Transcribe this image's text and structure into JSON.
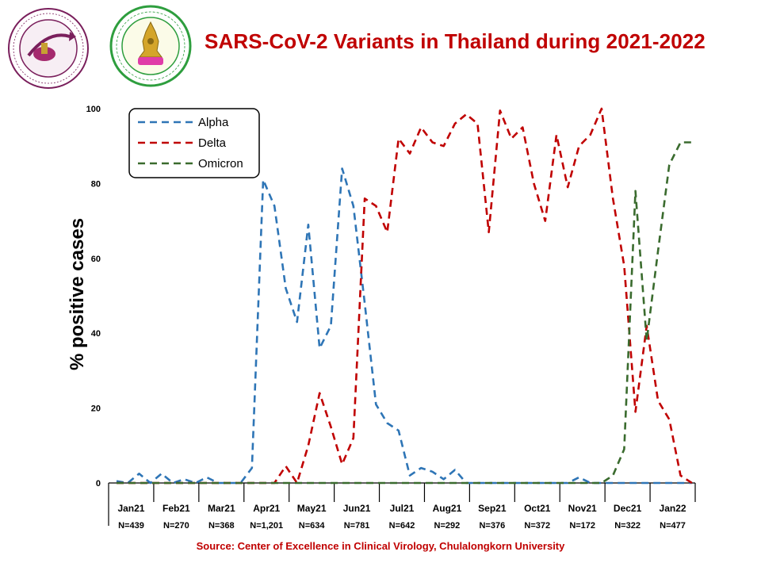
{
  "title": "SARS-CoV-2 Variants in Thailand during 2021-2022",
  "source": "Source: Center of Excellence in Clinical Virology, Chulalongkorn University",
  "logos": {
    "virology": {
      "icon": "center-of-excellence-virology-seal",
      "text": "Center of Excellence in Clinical Virology",
      "color": "#7a1f5c"
    },
    "medicine": {
      "icon": "faculty-of-medicine-chulalongkorn-seal",
      "text": "Faculty of Medicine Chulalongkorn University",
      "color": "#2e9e3e"
    }
  },
  "chart_data": {
    "type": "line",
    "title": "SARS-CoV-2 Variants in Thailand during 2021-2022",
    "ylabel": "% positive cases",
    "xlabel": "",
    "ylim": [
      0,
      100
    ],
    "yticks": [
      0,
      20,
      40,
      60,
      80,
      100
    ],
    "grid": false,
    "legend": "top-left",
    "categories": [
      "Jan21",
      "Feb21",
      "Mar21",
      "Apr21",
      "May21",
      "Jun21",
      "Jul21",
      "Aug21",
      "Sep21",
      "Oct21",
      "Nov21",
      "Dec21",
      "Jan22"
    ],
    "sample_sizes": [
      "N=439",
      "N=270",
      "N=368",
      "N=1,201",
      "N=634",
      "N=781",
      "N=642",
      "N=292",
      "N=376",
      "N=372",
      "N=172",
      "N=322",
      "N=477"
    ],
    "series": [
      {
        "name": "Alpha",
        "color": "#2e75b6",
        "dash": "dashed",
        "x": [
          0.0,
          0.25,
          0.5,
          0.75,
          1.0,
          1.25,
          1.5,
          1.75,
          2.0,
          2.25,
          2.5,
          2.75,
          3.0,
          3.25,
          3.5,
          3.75,
          4.0,
          4.25,
          4.5,
          4.75,
          5.0,
          5.25,
          5.5,
          5.75,
          6.0,
          6.25,
          6.5,
          6.75,
          7.0,
          7.25,
          7.5,
          7.75,
          8.0,
          8.25,
          8.5,
          8.75,
          9.0,
          9.25,
          9.5,
          9.75,
          10.0,
          10.25,
          10.5,
          10.75,
          11.0,
          11.25,
          11.5,
          11.75,
          12.0,
          12.25,
          12.5,
          12.75
        ],
        "y": [
          0.5,
          0,
          2.5,
          0,
          2.5,
          0,
          1,
          0,
          1.5,
          0,
          0,
          0,
          4,
          81,
          74,
          52,
          43,
          69,
          36,
          42,
          84,
          74,
          48,
          21,
          16,
          14,
          2,
          4,
          3,
          1,
          3.5,
          0,
          0,
          0,
          0,
          0,
          0,
          0,
          0,
          0,
          0,
          1.5,
          0,
          0,
          0,
          0,
          0,
          0,
          0,
          0,
          0,
          0
        ]
      },
      {
        "name": "Delta",
        "color": "#c00000",
        "dash": "dashed",
        "x": [
          0.0,
          0.25,
          0.5,
          0.75,
          1.0,
          1.25,
          1.5,
          1.75,
          2.0,
          2.25,
          2.5,
          2.75,
          3.0,
          3.25,
          3.5,
          3.75,
          4.0,
          4.25,
          4.5,
          4.75,
          5.0,
          5.25,
          5.5,
          5.75,
          6.0,
          6.25,
          6.5,
          6.75,
          7.0,
          7.25,
          7.5,
          7.75,
          8.0,
          8.25,
          8.5,
          8.75,
          9.0,
          9.25,
          9.5,
          9.75,
          10.0,
          10.25,
          10.5,
          10.75,
          11.0,
          11.25,
          11.5,
          11.75,
          12.0,
          12.25,
          12.5,
          12.75
        ],
        "y": [
          0,
          0,
          0,
          0,
          0,
          0,
          0,
          0,
          0,
          0,
          0,
          0,
          0,
          0,
          0,
          4.5,
          0,
          10,
          24,
          15,
          5,
          12,
          76,
          74,
          67,
          92,
          88,
          95,
          91,
          90,
          96,
          98.5,
          96,
          67,
          99.5,
          92,
          95,
          80,
          70,
          93,
          79,
          90,
          93,
          100,
          76,
          58,
          19,
          42,
          22,
          17,
          2,
          0
        ]
      },
      {
        "name": "Omicron",
        "color": "#3a6b2e",
        "dash": "dashed",
        "x": [
          0.0,
          0.25,
          0.5,
          0.75,
          1.0,
          1.25,
          1.5,
          1.75,
          2.0,
          2.25,
          2.5,
          2.75,
          3.0,
          3.25,
          3.5,
          3.75,
          4.0,
          4.25,
          4.5,
          4.75,
          5.0,
          5.25,
          5.5,
          5.75,
          6.0,
          6.25,
          6.5,
          6.75,
          7.0,
          7.25,
          7.5,
          7.75,
          8.0,
          8.25,
          8.5,
          8.75,
          9.0,
          9.25,
          9.5,
          9.75,
          10.0,
          10.25,
          10.5,
          10.75,
          11.0,
          11.25,
          11.5,
          11.75,
          12.0,
          12.25,
          12.5,
          12.75
        ],
        "y": [
          0,
          0,
          0,
          0,
          0,
          0,
          0,
          0,
          0,
          0,
          0,
          0,
          0,
          0,
          0,
          0,
          0,
          0,
          0,
          0,
          0,
          0,
          0,
          0,
          0,
          0,
          0,
          0,
          0,
          0,
          0,
          0,
          0,
          0,
          0,
          0,
          0,
          0,
          0,
          0,
          0,
          0,
          0,
          0,
          2,
          9,
          78,
          38,
          62,
          85,
          91,
          91
        ]
      }
    ]
  }
}
